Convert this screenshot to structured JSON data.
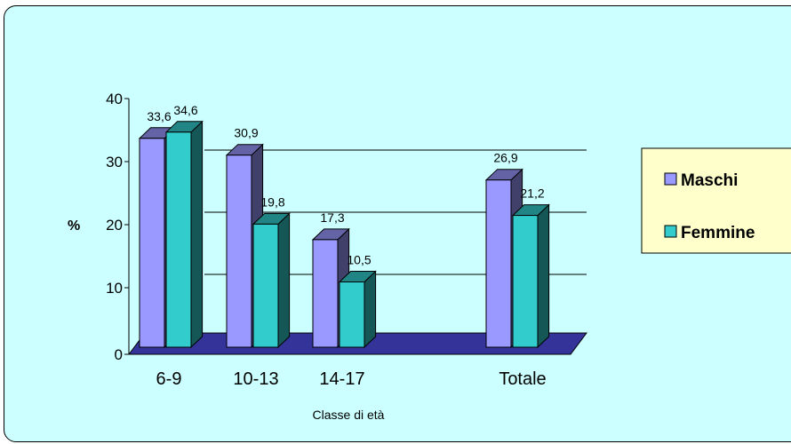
{
  "chart_data": {
    "type": "bar",
    "title": "",
    "xlabel": "Classe di età",
    "ylabel": "%",
    "categories": [
      "6-9",
      "10-13",
      "14-17",
      "Totale"
    ],
    "series": [
      {
        "name": "Maschi",
        "values": [
          33.6,
          30.9,
          17.3,
          26.9
        ],
        "labels": [
          "33,6",
          "30,9",
          "17,3",
          "26,9"
        ],
        "color": "#9999ff"
      },
      {
        "name": "Femmine",
        "values": [
          34.6,
          19.8,
          10.5,
          21.2
        ],
        "labels": [
          "34,6",
          "19,8",
          "10,5",
          "21,2"
        ],
        "color": "#33cccc"
      }
    ],
    "ylim": [
      0,
      40
    ],
    "yticks": [
      "0",
      "10",
      "20",
      "30",
      "40"
    ],
    "legend_position": "right",
    "floor_color": "#333399",
    "background_color": "#ccffff",
    "legend_background": "#ffffcc"
  }
}
